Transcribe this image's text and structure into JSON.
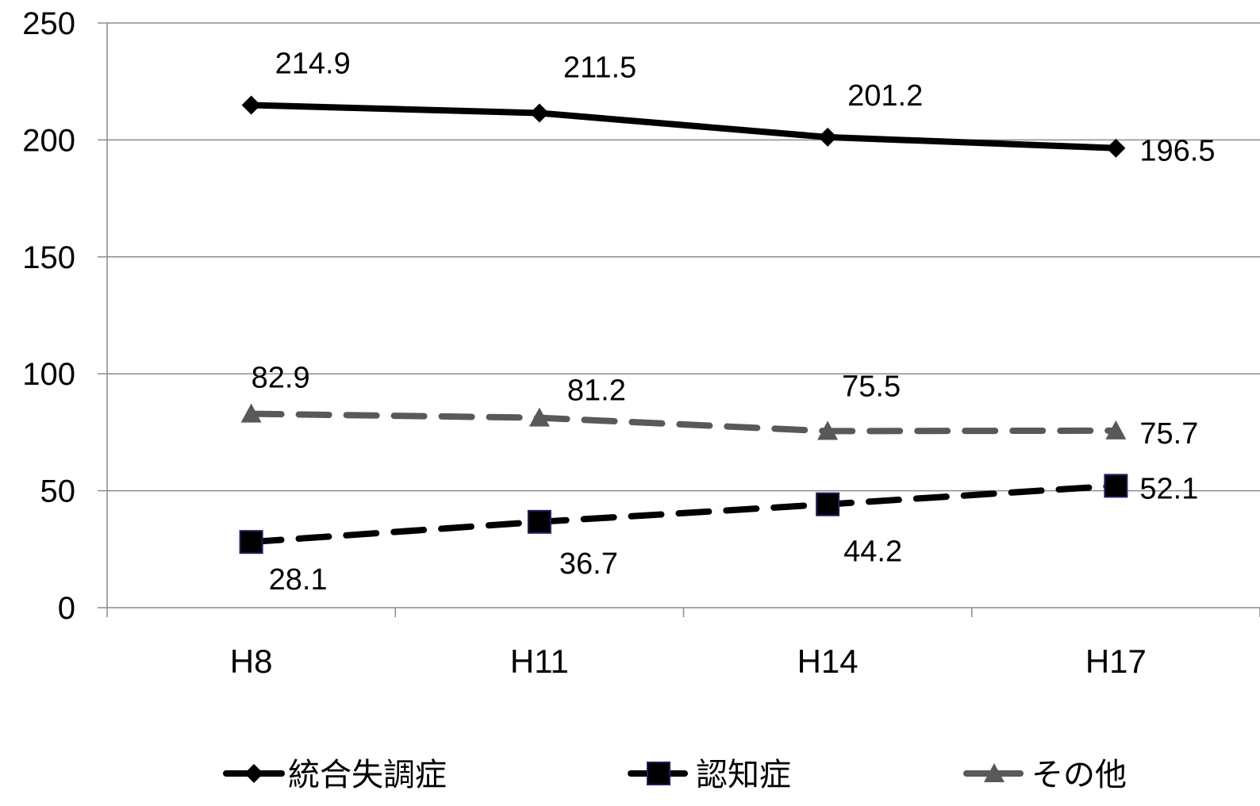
{
  "chart_data": {
    "type": "line",
    "categories": [
      "H8",
      "H11",
      "H14",
      "H17"
    ],
    "ylim": [
      0,
      250
    ],
    "yticks": [
      0,
      50,
      100,
      150,
      200,
      250
    ],
    "grid": true,
    "legend_position": "bottom",
    "series": [
      {
        "name": "統合失調症",
        "values": [
          214.9,
          211.5,
          201.2,
          196.5
        ],
        "value_labels": [
          "214.9",
          "211.5",
          "201.2",
          "196.5"
        ],
        "color": "#000000",
        "marker": "diamond",
        "dashed": false
      },
      {
        "name": "認知症",
        "values": [
          28.1,
          36.7,
          44.2,
          52.1
        ],
        "value_labels": [
          "28.1",
          "36.7",
          "44.2",
          "52.1"
        ],
        "color": "#000000",
        "marker": "square",
        "marker_stroke": "#1f1f5f",
        "dashed": true
      },
      {
        "name": "その他",
        "values": [
          82.9,
          81.2,
          75.5,
          75.7
        ],
        "value_labels": [
          "82.9",
          "81.2",
          "75.5",
          "75.7"
        ],
        "color": "#595959",
        "marker": "triangle",
        "dashed": true
      }
    ]
  }
}
